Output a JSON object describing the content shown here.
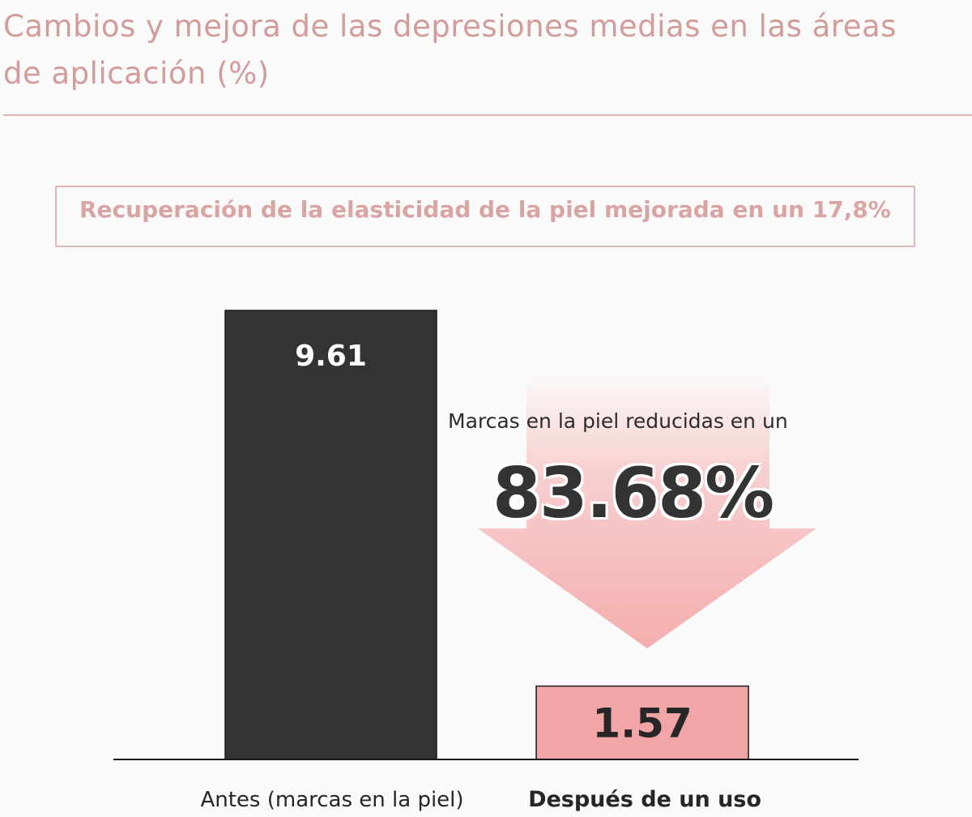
{
  "header": {
    "title": "Cambios y mejora de las depresiones medias en las áreas de aplicación (%)"
  },
  "callout": {
    "text": "Recuperación de la elasticidad de la piel mejorada en un 17,8%"
  },
  "annotation": {
    "label": "Marcas en la piel reducidas en un",
    "value": "83.68%"
  },
  "colors": {
    "accent": "#d19c9a",
    "before_bar": "#333333",
    "after_bar": "#f2a5a6",
    "arrow": "#f4aeae"
  },
  "chart_data": {
    "type": "bar",
    "title": "",
    "categories": [
      "Antes (marcas en la piel)",
      "Después de un uso"
    ],
    "values": [
      9.61,
      1.57
    ],
    "value_labels": [
      "9.61",
      "1.57"
    ],
    "ylim": [
      0,
      9.61
    ],
    "xlabel": "",
    "ylabel": "",
    "grid": false
  }
}
